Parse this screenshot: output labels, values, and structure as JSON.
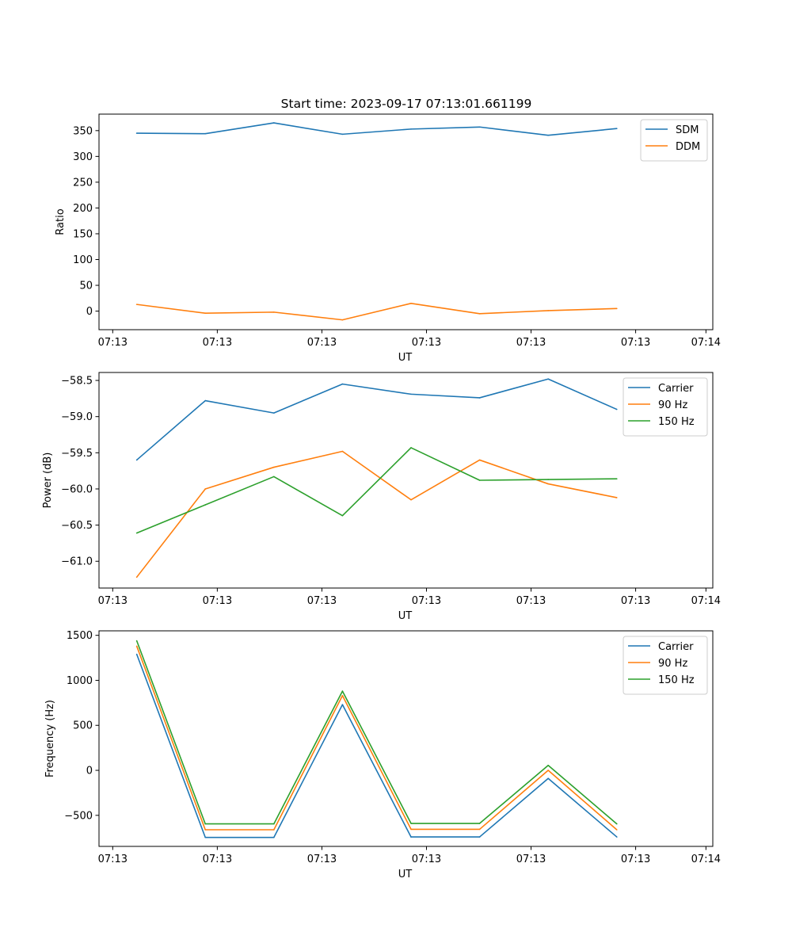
{
  "figure": {
    "title": "Start time: 2023-09-17 07:13:01.661199"
  },
  "chart_data": [
    {
      "type": "line",
      "title": "Start time: 2023-09-17 07:13:01.661199",
      "xlabel": "UT",
      "ylabel": "Ratio",
      "x_tick_labels": [
        "07:13",
        "07:13",
        "07:13",
        "07:13",
        "07:13",
        "07:13",
        "07:14"
      ],
      "x": [
        1,
        2,
        3,
        4,
        5,
        6,
        7,
        8
      ],
      "xlim": [
        0.45,
        9.4
      ],
      "yticks": [
        0,
        50,
        100,
        150,
        200,
        250,
        300,
        350
      ],
      "ylim": [
        -36,
        382
      ],
      "grid": false,
      "legend_position": "top-right",
      "series": [
        {
          "name": "SDM",
          "color": "#1f77b4",
          "values": [
            345,
            344,
            365,
            343,
            353,
            357,
            341,
            354
          ]
        },
        {
          "name": "DDM",
          "color": "#ff7f0e",
          "values": [
            13,
            -4,
            -2,
            -17,
            15,
            -5,
            1,
            5
          ]
        }
      ]
    },
    {
      "type": "line",
      "title": "",
      "xlabel": "UT",
      "ylabel": "Power (dB)",
      "x_tick_labels": [
        "07:13",
        "07:13",
        "07:13",
        "07:13",
        "07:13",
        "07:13",
        "07:14"
      ],
      "x": [
        1,
        2,
        3,
        4,
        5,
        6,
        7,
        8
      ],
      "xlim": [
        0.45,
        9.4
      ],
      "yticks": [
        -61.0,
        -60.5,
        -60.0,
        -59.5,
        -59.0,
        -58.5
      ],
      "ytick_labels": [
        "−61.0",
        "−60.5",
        "−60.0",
        "−59.5",
        "−59.0",
        "−58.5"
      ],
      "ylim": [
        -61.37,
        -58.39
      ],
      "grid": false,
      "legend_position": "top-right",
      "series": [
        {
          "name": "Carrier",
          "color": "#1f77b4",
          "values": [
            -59.6,
            -58.78,
            -58.95,
            -58.55,
            -58.69,
            -58.74,
            -58.48,
            -58.9
          ]
        },
        {
          "name": "90 Hz",
          "color": "#ff7f0e",
          "values": [
            -61.22,
            -60.0,
            -59.7,
            -59.48,
            -60.15,
            -59.6,
            -59.93,
            -60.12
          ]
        },
        {
          "name": "150 Hz",
          "color": "#2ca02c",
          "values": [
            -60.61,
            -60.22,
            -59.83,
            -60.37,
            -59.43,
            -59.88,
            -59.87,
            -59.86
          ]
        }
      ]
    },
    {
      "type": "line",
      "title": "",
      "xlabel": "UT",
      "ylabel": "Frequency (Hz)",
      "x_tick_labels": [
        "07:13",
        "07:13",
        "07:13",
        "07:13",
        "07:13",
        "07:13",
        "07:14"
      ],
      "x": [
        1,
        2,
        3,
        4,
        5,
        6,
        7,
        8
      ],
      "xlim": [
        0.45,
        9.4
      ],
      "yticks": [
        -500,
        0,
        500,
        1000,
        1500
      ],
      "ytick_labels": [
        "−500",
        "0",
        "500",
        "1000",
        "1500"
      ],
      "ylim": [
        -845,
        1550
      ],
      "grid": false,
      "legend_position": "top-right",
      "series": [
        {
          "name": "Carrier",
          "color": "#1f77b4",
          "values": [
            1290,
            -745,
            -745,
            730,
            -740,
            -740,
            -90,
            -740
          ]
        },
        {
          "name": "90 Hz",
          "color": "#ff7f0e",
          "values": [
            1380,
            -660,
            -660,
            830,
            -655,
            -655,
            0,
            -660
          ]
        },
        {
          "name": "150 Hz",
          "color": "#2ca02c",
          "values": [
            1440,
            -595,
            -595,
            880,
            -590,
            -590,
            55,
            -595
          ]
        }
      ]
    }
  ]
}
